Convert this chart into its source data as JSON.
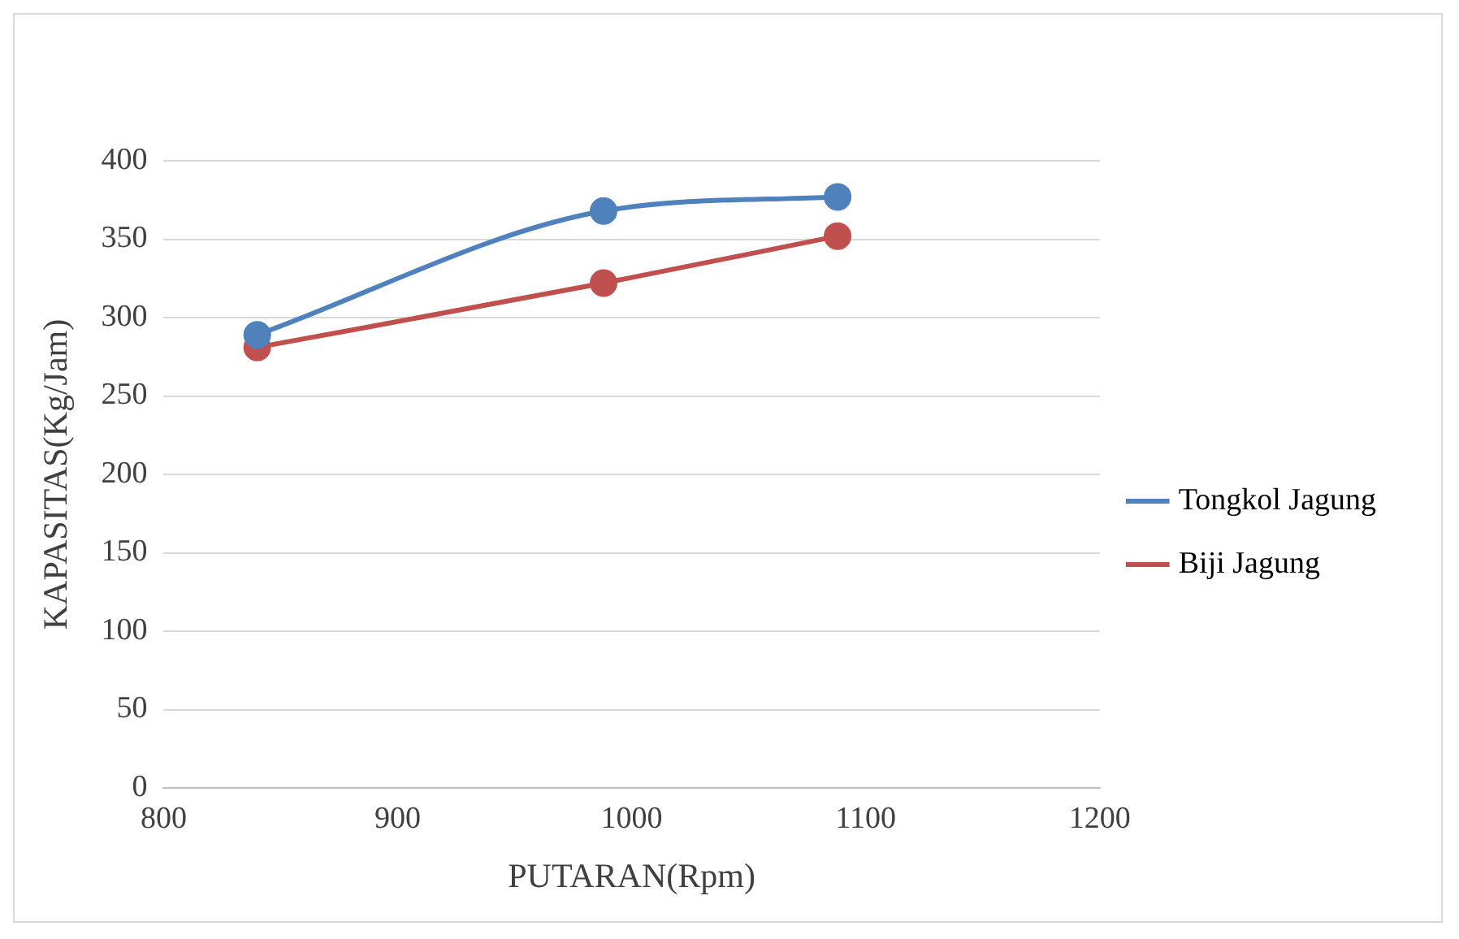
{
  "chart_data": {
    "type": "line",
    "xlabel": "PUTARAN(Rpm)",
    "ylabel": "KAPASITAS(Kg/Jam)",
    "x": [
      840,
      988,
      1088
    ],
    "series": [
      {
        "name": "Tongkol Jagung",
        "color": "#4f81bd",
        "values": [
          289,
          368,
          377
        ]
      },
      {
        "name": "Biji Jagung",
        "color": "#c0504d",
        "values": [
          281,
          322,
          352
        ]
      }
    ],
    "xlim": [
      800,
      1200
    ],
    "xticks": [
      800,
      900,
      1000,
      1100,
      1200
    ],
    "ylim": [
      0,
      400
    ],
    "yticks": [
      0,
      50,
      100,
      150,
      200,
      250,
      300,
      350,
      400
    ],
    "grid": "y",
    "legend": "right",
    "marker": "circle",
    "line_style": "solid"
  }
}
